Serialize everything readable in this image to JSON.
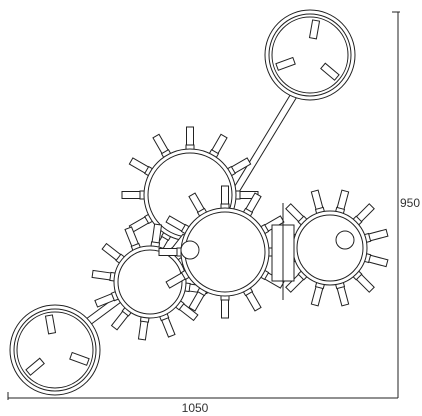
{
  "dimensions": {
    "height": "950",
    "width": "1050"
  }
}
